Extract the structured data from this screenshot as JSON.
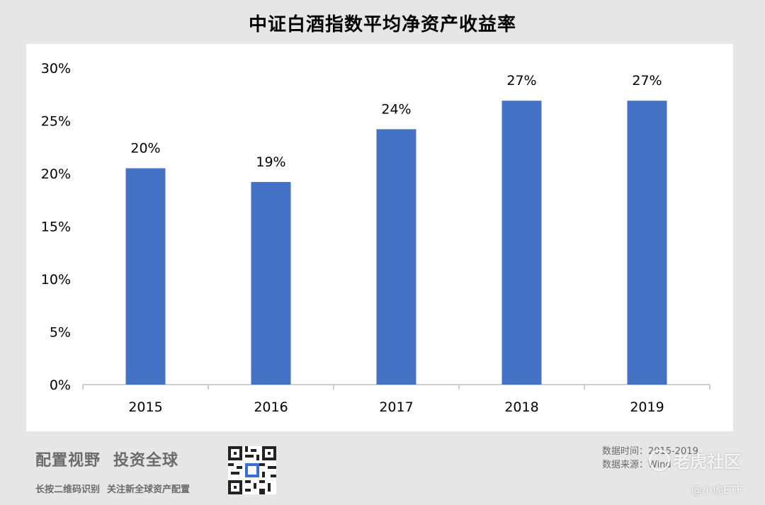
{
  "title": "中证白酒指数平均净资产收益率",
  "chart_data": {
    "type": "bar",
    "categories": [
      "2015",
      "2016",
      "2017",
      "2018",
      "2019"
    ],
    "values": [
      20.5,
      19.2,
      24.2,
      26.9,
      26.9
    ],
    "data_labels": [
      "20%",
      "19%",
      "24%",
      "27%",
      "27%"
    ],
    "ylim": [
      0,
      30
    ],
    "y_ticks": [
      0,
      5,
      10,
      15,
      20,
      25,
      30
    ],
    "y_tick_labels": [
      "0%",
      "5%",
      "10%",
      "15%",
      "20%",
      "25%",
      "30%"
    ],
    "bar_color": "#4472c4",
    "grid": false
  },
  "footer": {
    "slogan_1": "配置视野",
    "slogan_2": "投资全球",
    "sub_1": "长按二维码识别",
    "sub_2": "关注新全球资产配置",
    "data_time": "数据时间：2015-2019",
    "data_source": "数据来源：Wind"
  },
  "watermark": {
    "community": "老虎社区",
    "handle": "@小虎ETF"
  }
}
